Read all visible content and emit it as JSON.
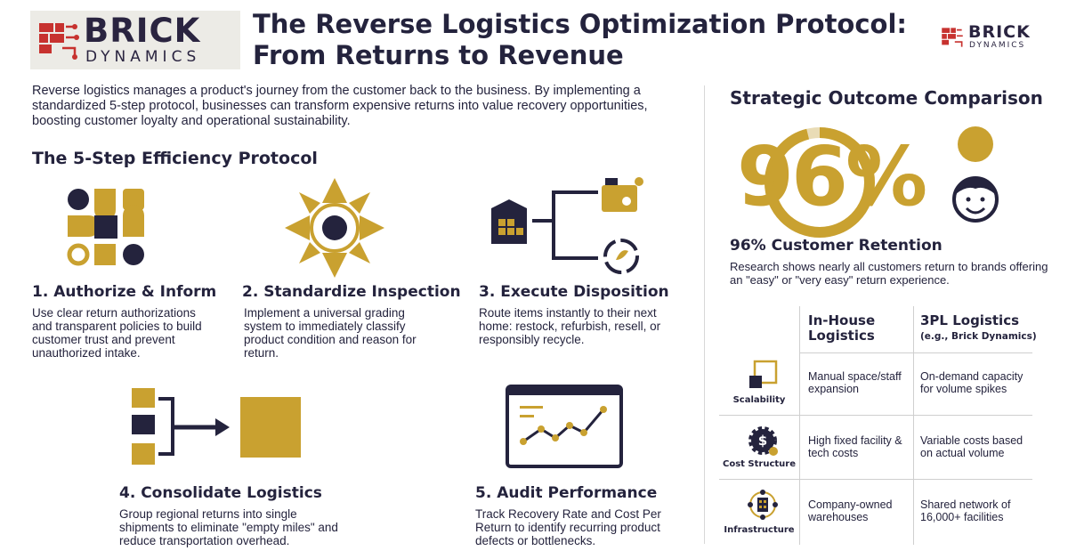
{
  "brand": {
    "name_top": "BRICK",
    "name_bottom": "DYNAMICS"
  },
  "header": {
    "title_line1": "The Reverse Logistics Optimization Protocol:",
    "title_line2": "From Returns to Revenue"
  },
  "intro": "Reverse logistics manages a product's journey from the customer back to the business. By implementing a standardized 5-step protocol, businesses can transform expensive returns into value recovery opportunities, boosting customer loyalty and operational sustainability.",
  "protocol": {
    "heading": "The 5-Step Efficiency Protocol",
    "steps": [
      {
        "title": "1. Authorize & Inform",
        "desc": "Use clear return authorizations and transparent policies to build customer trust and prevent unauthorized intake.",
        "icon": "shapes-grid-icon"
      },
      {
        "title": "2. Standardize Inspection",
        "desc": "Implement a universal grading system to immediately classify product condition and reason for return.",
        "icon": "compass-star-icon"
      },
      {
        "title": "3. Execute Disposition",
        "desc": "Route items instantly to their next home: restock, refurbish, resell, or responsibly recycle.",
        "icon": "routing-icon"
      },
      {
        "title": "4. Consolidate Logistics",
        "desc": "Group regional returns into single shipments to eliminate \"empty miles\" and reduce transportation overhead.",
        "icon": "consolidate-arrow-icon"
      },
      {
        "title": "5. Audit Performance",
        "desc": "Track Recovery Rate and Cost Per Return to identify recurring product defects or bottlenecks.",
        "icon": "line-chart-icon"
      }
    ]
  },
  "outcomes": {
    "heading": "Strategic Outcome Comparison",
    "big_stat": "96%",
    "retention_label": "96% Customer Retention",
    "retention_text": "Research shows nearly all customers return to brands offering an \"easy\" or \"very easy\" return experience.",
    "table": {
      "col1": "In-House Logistics",
      "col2": "3PL Logistics",
      "col2_sub": "(e.g., Brick Dynamics)",
      "rows": [
        {
          "label": "Scalability",
          "inhouse": "Manual space/staff expansion",
          "tpl": "On-demand capacity for volume spikes",
          "icon": "scale-squares-icon"
        },
        {
          "label": "Cost Structure",
          "inhouse": "High fixed facility & tech costs",
          "tpl": "Variable costs based on actual volume",
          "icon": "dollar-gear-icon"
        },
        {
          "label": "Infrastructure",
          "inhouse": "Company-owned warehouses",
          "tpl": "Shared network of 16,000+ facilities",
          "icon": "network-building-icon"
        }
      ]
    }
  },
  "colors": {
    "gold": "#c9a130",
    "navy": "#24233d",
    "red": "#c7322f",
    "gray_line": "#cfcfcf"
  }
}
